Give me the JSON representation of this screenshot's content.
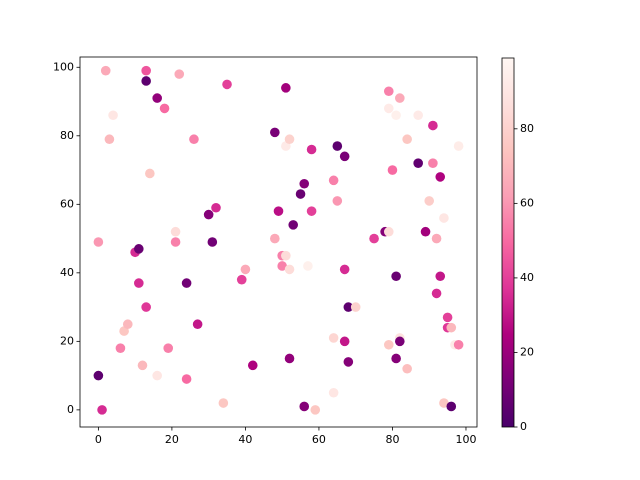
{
  "chart_data": {
    "type": "scatter",
    "x": [
      0,
      1,
      0,
      2,
      3,
      4,
      6,
      7,
      8,
      10,
      11,
      11,
      12,
      13,
      13,
      13,
      14,
      16,
      16,
      18,
      19,
      21,
      21,
      22,
      24,
      24,
      26,
      27,
      30,
      31,
      32,
      34,
      35,
      39,
      40,
      42,
      48,
      48,
      49,
      50,
      50,
      51,
      51,
      51,
      52,
      52,
      52,
      53,
      55,
      56,
      56,
      57,
      58,
      58,
      59,
      64,
      64,
      64,
      65,
      65,
      67,
      67,
      67,
      68,
      68,
      70,
      75,
      78,
      79,
      79,
      79,
      79,
      80,
      81,
      81,
      81,
      82,
      82,
      82,
      84,
      84,
      87,
      87,
      89,
      90,
      91,
      91,
      92,
      92,
      93,
      93,
      94,
      94,
      95,
      95,
      96,
      96,
      97,
      98,
      98
    ],
    "y": [
      10,
      0,
      49,
      99,
      79,
      86,
      18,
      23,
      25,
      46,
      47,
      37,
      13,
      30,
      96,
      99,
      69,
      10,
      91,
      88,
      18,
      52,
      49,
      98,
      37,
      9,
      79,
      25,
      57,
      49,
      59,
      2,
      95,
      38,
      41,
      13,
      81,
      50,
      58,
      45,
      42,
      94,
      45,
      77,
      79,
      41,
      15,
      54,
      63,
      66,
      1,
      42,
      76,
      58,
      0,
      5,
      21,
      67,
      61,
      77,
      74,
      41,
      20,
      30,
      14,
      30,
      50,
      52,
      52,
      88,
      93,
      19,
      70,
      86,
      39,
      15,
      91,
      21,
      20,
      79,
      12,
      86,
      72,
      52,
      61,
      83,
      72,
      50,
      34,
      68,
      39,
      56,
      2,
      27,
      24,
      1,
      24,
      19,
      19,
      77
    ],
    "c": [
      5,
      35,
      60,
      65,
      70,
      90,
      55,
      75,
      70,
      35,
      8,
      35,
      70,
      38,
      5,
      45,
      75,
      90,
      18,
      50,
      55,
      85,
      55,
      65,
      10,
      50,
      55,
      30,
      15,
      10,
      35,
      75,
      40,
      40,
      65,
      25,
      12,
      65,
      28,
      55,
      55,
      22,
      85,
      92,
      80,
      85,
      18,
      10,
      8,
      15,
      15,
      95,
      35,
      40,
      75,
      90,
      82,
      55,
      60,
      5,
      12,
      35,
      30,
      5,
      15,
      80,
      40,
      15,
      85,
      92,
      55,
      75,
      50,
      95,
      8,
      15,
      65,
      88,
      12,
      75,
      72,
      92,
      6,
      22,
      78,
      35,
      55,
      65,
      35,
      25,
      30,
      90,
      75,
      40,
      38,
      5,
      70,
      92,
      55,
      93
    ],
    "xlim": [
      -5,
      103
    ],
    "ylim": [
      -5,
      103
    ],
    "xticks": [
      0,
      20,
      40,
      60,
      80,
      100
    ],
    "yticks": [
      0,
      20,
      40,
      60,
      80,
      100
    ],
    "clim": [
      0,
      99
    ],
    "cticks": [
      0,
      20,
      40,
      60,
      80
    ],
    "colormap": [
      "#49006a",
      "#7a0177",
      "#ae017e",
      "#dd3497",
      "#f768a1",
      "#fa9fb5",
      "#fcc5c0",
      "#fde0dd",
      "#fff7f3"
    ]
  }
}
